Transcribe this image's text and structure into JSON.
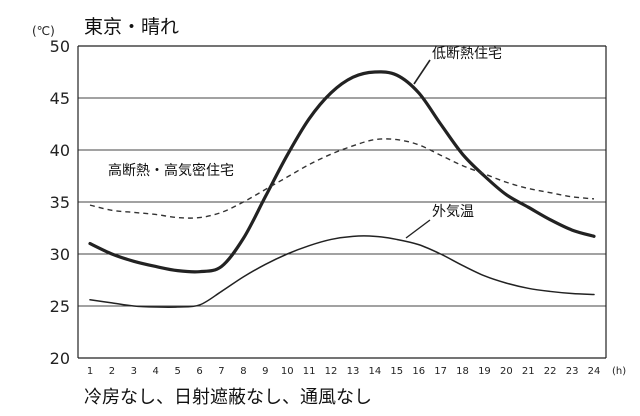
{
  "chart_data": {
    "type": "line",
    "title": "東京・晴れ",
    "y_unit": "(℃)",
    "x_unit": "(h)",
    "caption": "冷房なし、日射遮蔽なし、通風なし",
    "ylim": [
      20,
      50
    ],
    "yticks": [
      20,
      25,
      30,
      35,
      40,
      45,
      50
    ],
    "x": [
      1,
      2,
      3,
      4,
      5,
      6,
      7,
      8,
      9,
      10,
      11,
      12,
      13,
      14,
      15,
      16,
      17,
      18,
      19,
      20,
      21,
      22,
      23,
      24
    ],
    "grid": "horizontal",
    "series": [
      {
        "name": "低断熱住宅",
        "style": "solid-thick",
        "color": "#222222",
        "values": [
          31.0,
          30.0,
          29.3,
          28.8,
          28.4,
          28.3,
          28.8,
          31.5,
          35.5,
          39.5,
          43.0,
          45.5,
          47.0,
          47.5,
          47.2,
          45.5,
          42.5,
          39.6,
          37.5,
          35.7,
          34.5,
          33.3,
          32.3,
          31.7
        ]
      },
      {
        "name": "高断熱・高気密住宅",
        "style": "dashed",
        "color": "#333333",
        "values": [
          34.7,
          34.2,
          34.0,
          33.8,
          33.5,
          33.5,
          34.0,
          35.0,
          36.2,
          37.4,
          38.6,
          39.6,
          40.4,
          41.0,
          41.0,
          40.5,
          39.5,
          38.5,
          37.7,
          36.9,
          36.3,
          35.9,
          35.5,
          35.3
        ]
      },
      {
        "name": "外気温",
        "style": "solid-thin",
        "color": "#222222",
        "values": [
          25.6,
          25.3,
          25.0,
          24.9,
          24.9,
          25.1,
          26.4,
          27.8,
          29.0,
          30.0,
          30.8,
          31.4,
          31.7,
          31.7,
          31.4,
          30.9,
          30.0,
          28.9,
          27.9,
          27.2,
          26.7,
          26.4,
          26.2,
          26.1
        ]
      }
    ]
  }
}
